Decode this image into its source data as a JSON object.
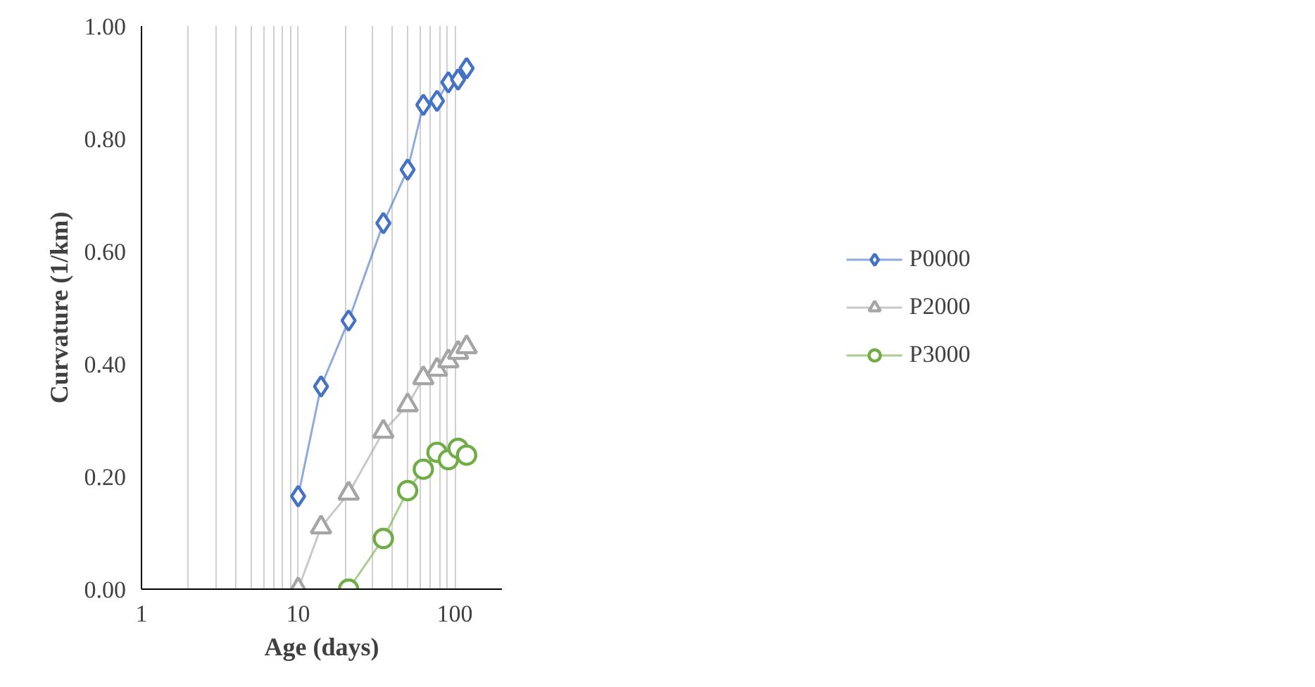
{
  "chart_data": {
    "type": "line",
    "xlabel": "Age (days)",
    "ylabel": "Curvature (1/km)",
    "log": "x",
    "grid": "x",
    "legend": "right",
    "xlim": [
      1,
      200
    ],
    "ylim": [
      0,
      1
    ],
    "xticks": [
      1,
      {
        "value": 2,
        "label": null
      },
      {
        "value": 3,
        "label": null
      },
      {
        "value": 4,
        "label": null
      },
      {
        "value": 5,
        "label": null
      },
      {
        "value": 6,
        "label": null
      },
      {
        "value": 7,
        "label": null
      },
      {
        "value": 8,
        "label": null
      },
      {
        "value": 9,
        "label": null
      },
      10,
      {
        "value": 20,
        "label": null
      },
      {
        "value": 30,
        "label": null
      },
      {
        "value": 40,
        "label": null
      },
      {
        "value": 50,
        "label": null
      },
      {
        "value": 60,
        "label": null
      },
      {
        "value": 70,
        "label": null
      },
      {
        "value": 80,
        "label": null
      },
      {
        "value": 90,
        "label": null
      },
      100
    ],
    "yticks": [
      {
        "value": 0,
        "label": "0.00"
      },
      {
        "value": 0.2,
        "label": "0.20"
      },
      {
        "value": 0.4,
        "label": "0.40"
      },
      {
        "value": 0.6,
        "label": "0.60"
      },
      {
        "value": 0.8,
        "label": "0.80"
      },
      {
        "value": 1,
        "label": "1.00"
      }
    ],
    "series": [
      {
        "name": "P0000",
        "color": "#4472c4",
        "marker": "diamond",
        "x": [
          10,
          14,
          21,
          35,
          50,
          63,
          77,
          91,
          105,
          119
        ],
        "values": [
          0.165,
          0.36,
          0.477,
          0.65,
          0.745,
          0.86,
          0.867,
          0.9,
          0.905,
          0.925
        ]
      },
      {
        "name": "P2000",
        "color": "#a5a5a5",
        "marker": "triangle",
        "x": [
          10,
          14,
          21,
          35,
          50,
          63,
          77,
          91,
          105,
          119
        ],
        "values": [
          0.0,
          0.11,
          0.17,
          0.28,
          0.327,
          0.375,
          0.39,
          0.405,
          0.42,
          0.43
        ]
      },
      {
        "name": "P3000",
        "color": "#70ad47",
        "marker": "circle",
        "x": [
          21,
          35,
          50,
          63,
          77,
          91,
          105,
          119
        ],
        "values": [
          0.0,
          0.09,
          0.175,
          0.213,
          0.243,
          0.23,
          0.25,
          0.238
        ]
      }
    ]
  }
}
